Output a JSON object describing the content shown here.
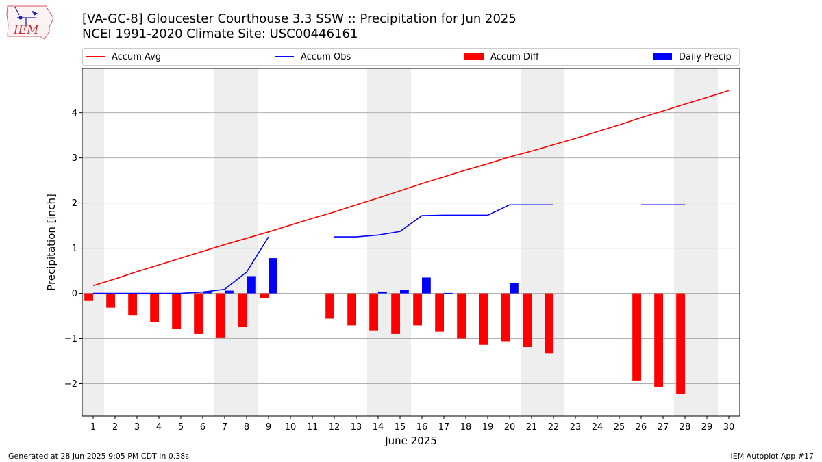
{
  "header": {
    "title_line1": "[VA-GC-8] Gloucester Courthouse 3.3 SSW :: Precipitation for Jun 2025",
    "title_line2": "NCEI 1991-2020 Climate Site: USC00446161",
    "logo_text": "IEM"
  },
  "footer": {
    "generated": "Generated at 28 Jun 2025 9:05 PM CDT in 0.38s",
    "app": "IEM Autoplot App #17"
  },
  "colors": {
    "accum_avg": "#ff0000",
    "accum_obs": "#0000ff",
    "accum_diff": "#ff0000",
    "daily_precip": "#0000ff",
    "weekend_shade": "#eeeeee"
  },
  "chart_data": {
    "type": "bar",
    "title": "[VA-GC-8] Gloucester Courthouse 3.3 SSW :: Precipitation for Jun 2025",
    "subtitle": "NCEI 1991-2020 Climate Site: USC00446161",
    "xlabel": "June 2025",
    "ylabel": "Precipitation [inch]",
    "x": [
      1,
      2,
      3,
      4,
      5,
      6,
      7,
      8,
      9,
      10,
      11,
      12,
      13,
      14,
      15,
      16,
      17,
      18,
      19,
      20,
      21,
      22,
      23,
      24,
      25,
      26,
      27,
      28,
      29,
      30
    ],
    "xlim": [
      0.5,
      30.5
    ],
    "ylim": [
      -2.72,
      4.98
    ],
    "yticks": [
      -2,
      -1,
      0,
      1,
      2,
      3,
      4
    ],
    "ytick_labels": [
      "−2",
      "−1",
      "0",
      "1",
      "2",
      "3",
      "4"
    ],
    "grid": "horizontal",
    "legend_position": "top",
    "shaded_days": [
      [
        1,
        1
      ],
      [
        7,
        8
      ],
      [
        14,
        15
      ],
      [
        21,
        22
      ],
      [
        28,
        29
      ]
    ],
    "series": [
      {
        "name": "Accum Avg",
        "kind": "line",
        "color": "#ff0000",
        "x": [
          1,
          2,
          3,
          4,
          5,
          6,
          7,
          8,
          9,
          10,
          11,
          12,
          13,
          14,
          15,
          16,
          17,
          18,
          19,
          20,
          21,
          22,
          23,
          24,
          25,
          26,
          27,
          28,
          29,
          30
        ],
        "values": [
          0.17,
          0.32,
          0.48,
          0.63,
          0.78,
          0.93,
          1.08,
          1.22,
          1.36,
          1.51,
          1.66,
          1.8,
          1.96,
          2.11,
          2.27,
          2.43,
          2.58,
          2.73,
          2.87,
          3.02,
          3.15,
          3.29,
          3.43,
          3.58,
          3.73,
          3.89,
          4.04,
          4.19,
          4.34,
          4.49
        ]
      },
      {
        "name": "Accum Obs",
        "kind": "line",
        "color": "#0000ff",
        "segments": [
          {
            "x": [
              1,
              2,
              3,
              4,
              5,
              6,
              7,
              8,
              9
            ],
            "values": [
              0.0,
              0.0,
              0.0,
              0.0,
              0.0,
              0.03,
              0.09,
              0.47,
              1.25
            ]
          },
          {
            "x": [
              12,
              13,
              14,
              15,
              16,
              17,
              18,
              19,
              20,
              21,
              22
            ],
            "values": [
              1.25,
              1.25,
              1.29,
              1.37,
              1.72,
              1.73,
              1.73,
              1.73,
              1.96,
              1.96,
              1.96
            ]
          },
          {
            "x": [
              26,
              27,
              28
            ],
            "values": [
              1.96,
              1.96,
              1.96
            ]
          }
        ]
      },
      {
        "name": "Accum Diff",
        "kind": "bar",
        "color": "#ff0000",
        "x": [
          1,
          2,
          3,
          4,
          5,
          6,
          7,
          8,
          9,
          12,
          13,
          14,
          15,
          16,
          17,
          18,
          19,
          20,
          21,
          22,
          26,
          27,
          28
        ],
        "values": [
          -0.17,
          -0.32,
          -0.48,
          -0.63,
          -0.78,
          -0.9,
          -0.99,
          -0.75,
          -0.11,
          -0.56,
          -0.71,
          -0.82,
          -0.9,
          -0.71,
          -0.85,
          -1.0,
          -1.14,
          -1.06,
          -1.19,
          -1.33,
          -1.93,
          -2.08,
          -2.23
        ]
      },
      {
        "name": "Daily Precip",
        "kind": "bar",
        "color": "#0000ff",
        "x": [
          6,
          7,
          8,
          9,
          14,
          15,
          16,
          17,
          20
        ],
        "values": [
          0.03,
          0.06,
          0.38,
          0.78,
          0.04,
          0.08,
          0.35,
          0.01,
          0.23
        ]
      }
    ]
  }
}
